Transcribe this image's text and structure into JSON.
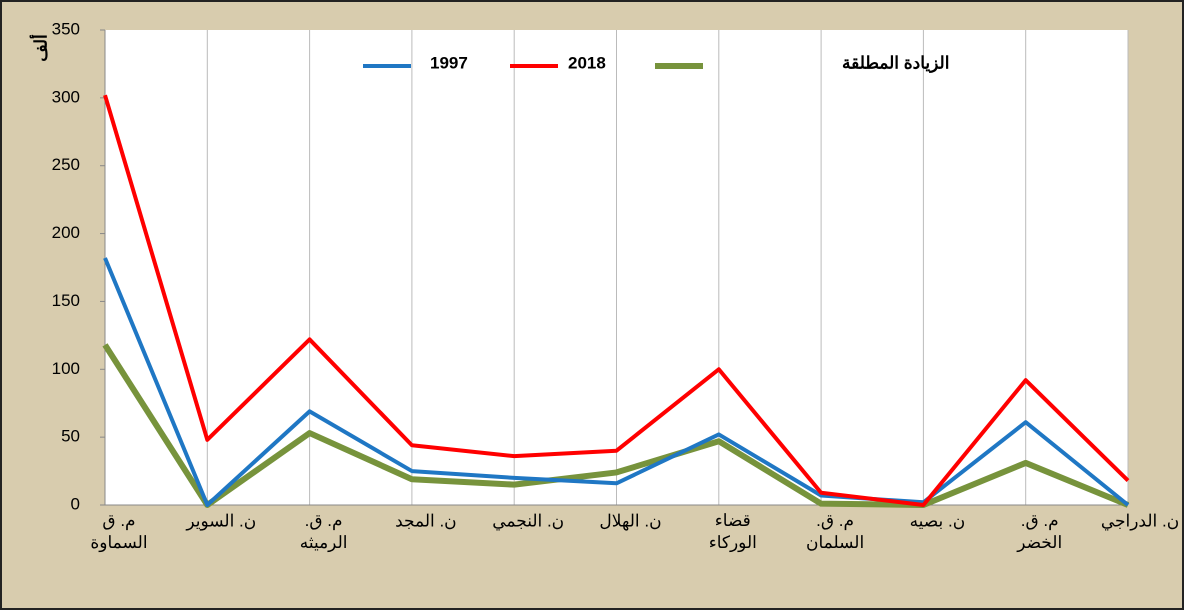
{
  "chart_data": {
    "type": "line",
    "y_label": "ألف",
    "categories": [
      "م. ق\nالسماوة",
      "ن. السوير",
      "م. ق.\nالرميثه",
      "ن. المجد",
      "ن. النجمي",
      "ن. الهلال",
      "قضاء\nالوركاء",
      "م. ق.\nالسلمان",
      "ن. بصيه",
      "م. ق.\nالخضر",
      "ن. الدراجي"
    ],
    "series": [
      {
        "name": "1997",
        "color": "#1f77c4",
        "values": [
          182,
          0,
          69,
          25,
          20,
          16,
          52,
          7,
          2,
          61,
          0
        ]
      },
      {
        "name": "2018",
        "color": "#ff0000",
        "values": [
          302,
          48,
          122,
          44,
          36,
          40,
          100,
          9,
          0,
          92,
          18
        ]
      },
      {
        "name": "الزيادة المطلقة",
        "color": "#77933c",
        "values": [
          118,
          0,
          53,
          19,
          15,
          24,
          47,
          1,
          0,
          31,
          0
        ]
      }
    ],
    "ylim": [
      0,
      350
    ],
    "yticks": [
      0,
      50,
      100,
      150,
      200,
      250,
      300,
      350
    ],
    "grid": "vertical"
  }
}
